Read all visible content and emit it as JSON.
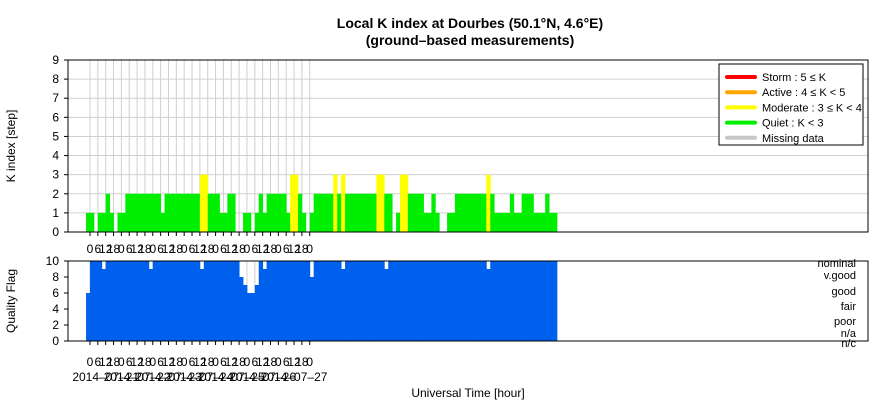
{
  "chart_data": [
    {
      "type": "bar",
      "title": "Local K index at Dourbes (50.1°N, 4.6°E)",
      "subtitle": "(ground–based measurements)",
      "ylabel": "K index [step]",
      "ylim": [
        0,
        9
      ],
      "yticks": [
        "0",
        "1",
        "2",
        "3",
        "4",
        "5",
        "6",
        "7",
        "8",
        "9"
      ],
      "grid": true,
      "legend_position": "top-right",
      "colors": {
        "storm": "#ff0000",
        "active": "#ffa500",
        "moderate": "#ffff00",
        "quiet": "#00ee00",
        "missing": "#c8c8c8"
      },
      "legend": [
        {
          "key": "storm",
          "label": "Storm : 5 ≤ K"
        },
        {
          "key": "active",
          "label": "Active : 4 ≤ K < 5"
        },
        {
          "key": "moderate",
          "label": "Moderate : 3 ≤ K < 4"
        },
        {
          "key": "quiet",
          "label": "Quiet : K < 3"
        },
        {
          "key": "missing",
          "label": "Missing data"
        }
      ],
      "x_start": "2014-07-20T21:00",
      "interval_hours": 3,
      "values": [
        1,
        1,
        0,
        1,
        1,
        2,
        1,
        0,
        1,
        1,
        2,
        2,
        2,
        2,
        2,
        2,
        2,
        2,
        2,
        1,
        2,
        2,
        2,
        2,
        2,
        2,
        2,
        2,
        2,
        3,
        3,
        2,
        2,
        2,
        1,
        1,
        2,
        2,
        0,
        0,
        1,
        1,
        0,
        1,
        2,
        1,
        2,
        2,
        2,
        2,
        2,
        1,
        3,
        3,
        2,
        1,
        0,
        1,
        2,
        2,
        2,
        2,
        2,
        3,
        2,
        3,
        2,
        2,
        2,
        2,
        2,
        2,
        2,
        2,
        3,
        3,
        2,
        2,
        0,
        1,
        3,
        3,
        2,
        2,
        2,
        2,
        1,
        1,
        2,
        1,
        0,
        0,
        1,
        1,
        2,
        2,
        2,
        2,
        2,
        2,
        2,
        2,
        3,
        2,
        1,
        1,
        1,
        1,
        2,
        1,
        1,
        2,
        2,
        2,
        1,
        1,
        1,
        2,
        1,
        1
      ]
    },
    {
      "type": "area",
      "ylabel": "Quality Flag",
      "ylim": [
        0,
        10
      ],
      "yticks": [
        "0",
        "2",
        "4",
        "6",
        "8",
        "10"
      ],
      "xlabel": "Universal Time [hour]",
      "hour_ticks": [
        "0",
        "6",
        "12",
        "18",
        "0",
        "6",
        "12",
        "18",
        "0",
        "6",
        "12",
        "18",
        "0",
        "6",
        "12",
        "18",
        "0",
        "6",
        "12",
        "18",
        "0",
        "6",
        "12",
        "18",
        "0",
        "6",
        "12",
        "18",
        "0"
      ],
      "date_labels": [
        "2014–07–21",
        "2014–07–22",
        "2014–07–23",
        "2014–07–24",
        "2014–07–25",
        "2014–07–26",
        "2014–07–27"
      ],
      "quality_labels": [
        "nominal",
        "v.good",
        "good",
        "fair",
        "poor",
        "n/a",
        "n/c"
      ],
      "fill_color": "#0060ee",
      "x_start": "2014-07-20T21:00",
      "interval_hours": 3,
      "values": [
        6,
        10,
        10,
        10,
        9,
        10,
        10,
        10,
        10,
        10,
        10,
        10,
        10,
        10,
        10,
        10,
        9,
        10,
        10,
        10,
        10,
        10,
        10,
        10,
        10,
        10,
        10,
        10,
        10,
        9,
        10,
        10,
        10,
        10,
        10,
        10,
        10,
        10,
        10,
        8,
        7,
        6,
        6,
        7,
        10,
        9,
        10,
        10,
        10,
        10,
        10,
        10,
        10,
        10,
        10,
        10,
        10,
        8,
        10,
        10,
        10,
        10,
        10,
        10,
        10,
        9,
        10,
        10,
        10,
        10,
        10,
        10,
        10,
        10,
        10,
        10,
        9,
        10,
        10,
        10,
        10,
        10,
        10,
        10,
        10,
        10,
        10,
        10,
        10,
        10,
        10,
        10,
        10,
        10,
        10,
        10,
        10,
        10,
        10,
        10,
        10,
        10,
        9,
        10,
        10,
        10,
        10,
        10,
        10,
        10,
        10,
        10,
        10,
        10,
        10,
        10,
        10,
        10,
        10,
        10
      ]
    }
  ]
}
